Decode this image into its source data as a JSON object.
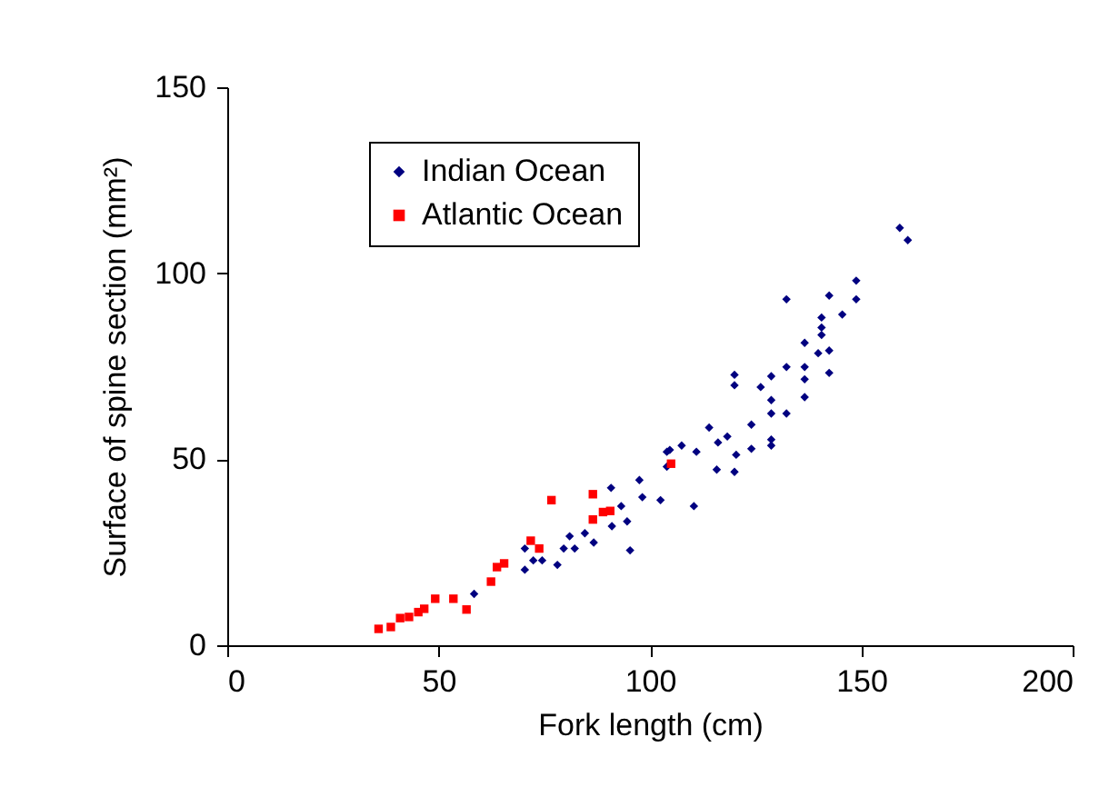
{
  "chart_data": {
    "type": "scatter",
    "xlabel": "Fork length (cm)",
    "ylabel": "Surface of spine section (mm²)",
    "xlim": [
      0,
      200
    ],
    "xticks": [
      0,
      50,
      100,
      150,
      200
    ],
    "ylim": [
      0,
      150
    ],
    "yticks": [
      0,
      50,
      100,
      150
    ],
    "grid": false,
    "legend": "top left",
    "series": [
      {
        "name": "Indian Ocean",
        "color": "#000080",
        "marker": "diamond",
        "x": [
          58.4,
          70.4,
          70.4,
          72.4,
          74.5,
          78.1,
          79.6,
          81,
          82.2,
          84.6,
          86.7,
          90.8,
          91,
          93.2,
          94.6,
          95.3,
          97.5,
          98.2,
          102.5,
          104,
          104,
          107.5,
          110.4,
          111,
          104.7,
          114,
          116.1,
          118.3,
          120.4,
          115.8,
          120,
          124,
          124,
          120,
          120,
          126.2,
          128.7,
          128.7,
          128.7,
          128.7,
          128.7,
          132.3,
          132.3,
          132.3,
          136.6,
          136.6,
          136.6,
          136.6,
          139.8,
          142.4,
          142.4,
          140.6,
          140.6,
          140.6,
          142.4,
          145.5,
          148.8,
          148.8,
          159.1,
          161
        ],
        "values": [
          13.8,
          26,
          20.3,
          22.8,
          22.8,
          21.6,
          26,
          29.3,
          26,
          30.1,
          27.6,
          42.3,
          32,
          37.4,
          33.3,
          25.5,
          44.4,
          39.8,
          39,
          48,
          52,
          53.7,
          37.4,
          52,
          52.5,
          58.5,
          54.5,
          56.1,
          51.2,
          47.2,
          46.6,
          59.3,
          52.8,
          72.7,
          69.9,
          69.4,
          72.3,
          65.9,
          62.3,
          55.3,
          53.7,
          93,
          74.8,
          62.3,
          81.3,
          74.8,
          71.5,
          66.7,
          78.5,
          79.2,
          73.2,
          88.1,
          85.4,
          83.4,
          94,
          88.9,
          98,
          93,
          112.2,
          108.9
        ]
      },
      {
        "name": "Atlantic Ocean",
        "color": "#ff0000",
        "marker": "square",
        "x": [
          35.8,
          38.7,
          40.9,
          43,
          45.2,
          46.6,
          49.2,
          53.5,
          56.6,
          62.4,
          65.5,
          63.8,
          71.8,
          73.8,
          76.7,
          86.5,
          86.5,
          88.9,
          90.6,
          105
        ],
        "values": [
          4.4,
          4.9,
          7.3,
          7.6,
          8.9,
          9.8,
          12.5,
          12.5,
          9.6,
          17.1,
          22,
          21,
          28.1,
          26,
          39,
          40.6,
          33.8,
          35.8,
          36.1,
          48.8
        ]
      }
    ]
  }
}
